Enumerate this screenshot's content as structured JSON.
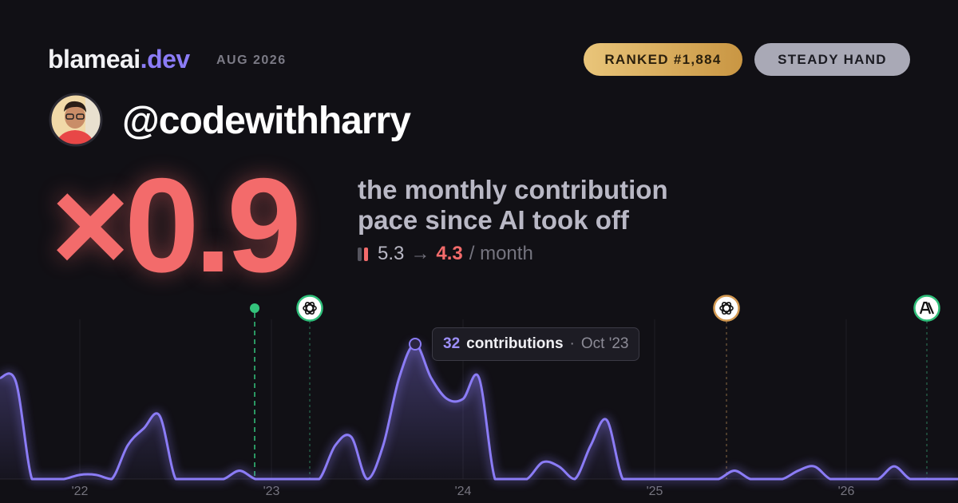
{
  "header": {
    "brand": "blameai",
    "brand_suffix": ".dev",
    "period": "AUG 2026",
    "badges": [
      "RANKED #1,884",
      "STEADY HAND"
    ]
  },
  "profile": {
    "username": "@codewithharry"
  },
  "headline": {
    "multiplier": "×0.9",
    "description": [
      "the monthly contribution",
      "pace since AI took off"
    ],
    "before": "5.3",
    "arrow": "→",
    "after": "4.3",
    "unit": "/ month"
  },
  "chart_data": {
    "type": "line",
    "categories": [
      null,
      null,
      null,
      null,
      null,
      "'22",
      null,
      null,
      null,
      null,
      null,
      null,
      null,
      null,
      null,
      null,
      null,
      "'23",
      null,
      null,
      null,
      null,
      null,
      null,
      null,
      null,
      null,
      null,
      null,
      "'24",
      null,
      null,
      null,
      null,
      null,
      null,
      null,
      null,
      null,
      null,
      null,
      "'25",
      null,
      null,
      null,
      null,
      null,
      null,
      null,
      null,
      null,
      null,
      null,
      "'26",
      null,
      null,
      null,
      null,
      null,
      null,
      null
    ],
    "series": [
      {
        "name": "contributions",
        "color": "#8b7cf6",
        "values": [
          24,
          23,
          0,
          0,
          0,
          1,
          1,
          0,
          8,
          12,
          15,
          0,
          0,
          0,
          0,
          2,
          0,
          0,
          0,
          0,
          0,
          8,
          10,
          0,
          8,
          24,
          32,
          24,
          19,
          19,
          24,
          0,
          0,
          0,
          4,
          3,
          0,
          8,
          14,
          0,
          0,
          0,
          0,
          0,
          0,
          0,
          2,
          0,
          0,
          0,
          2,
          3,
          0,
          0,
          0,
          0,
          3,
          0,
          0,
          0,
          0
        ]
      }
    ],
    "tooltip": {
      "separator": "·",
      "date": "Oct '23"
    }
  }
}
